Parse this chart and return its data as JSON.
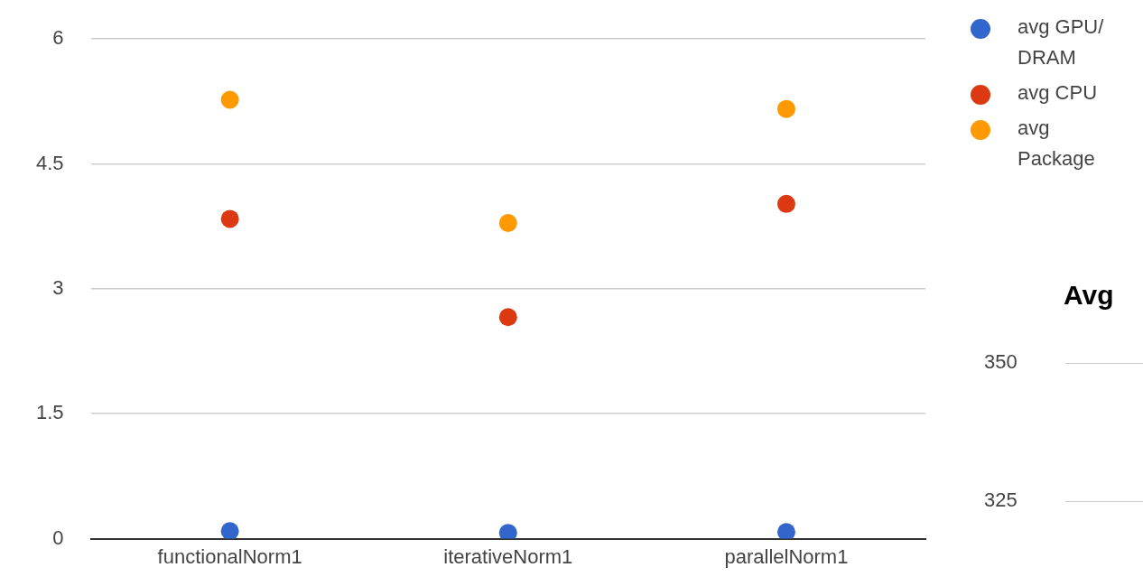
{
  "chart_data": [
    {
      "type": "scatter",
      "categories": [
        "functionalNorm1",
        "iterativeNorm1",
        "parallelNorm1"
      ],
      "series": [
        {
          "name": "avg GPU/ DRAM",
          "color": "#3366cc",
          "values": [
            0.09,
            0.07,
            0.08
          ]
        },
        {
          "name": "avg CPU",
          "color": "#dc3912",
          "values": [
            3.84,
            2.66,
            4.02
          ]
        },
        {
          "name": "avg Package",
          "color": "#ff9900",
          "values": [
            5.27,
            3.79,
            5.16
          ]
        }
      ],
      "ylim": [
        0,
        6
      ],
      "yticks": [
        0,
        1.5,
        3,
        4.5,
        6
      ],
      "grid": "y",
      "legend": "top right",
      "marker": "circle"
    },
    {
      "type": "other",
      "title": "Avg",
      "annotations": [
        "350",
        "325"
      ]
    }
  ]
}
